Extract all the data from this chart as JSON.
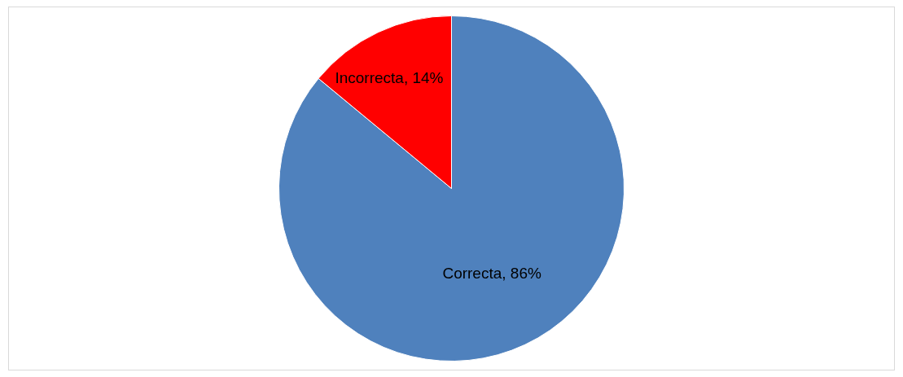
{
  "chart_data": {
    "type": "pie",
    "categories": [
      "Correcta",
      "Incorrecta"
    ],
    "values": [
      86,
      14
    ],
    "colors": [
      "#4f81bd",
      "#ff0000"
    ],
    "value_labels": [
      "86%",
      "14%"
    ],
    "legend": false
  }
}
